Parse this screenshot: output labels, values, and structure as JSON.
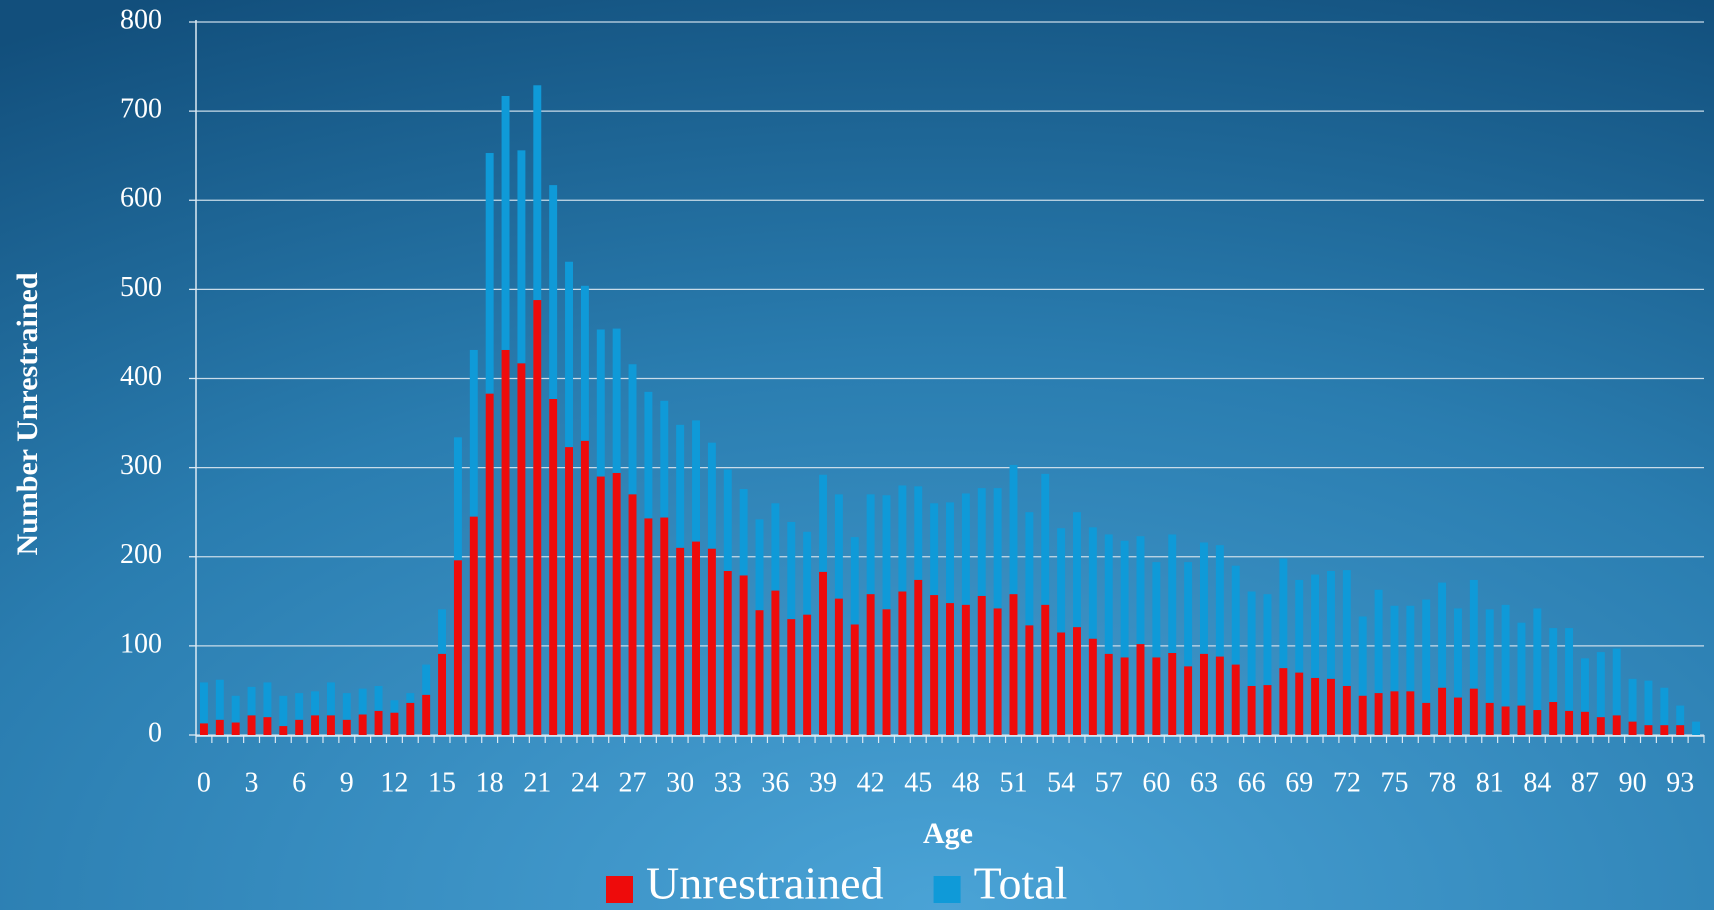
{
  "chart_data": {
    "type": "bar",
    "x_label": "Age",
    "y_label": "Number Unrestrained",
    "categories": [
      "0",
      null,
      null,
      "3",
      null,
      null,
      "6",
      null,
      null,
      "9",
      null,
      null,
      "12",
      null,
      null,
      "15",
      null,
      null,
      "18",
      null,
      null,
      "21",
      null,
      null,
      "24",
      null,
      null,
      "27",
      null,
      null,
      "30",
      null,
      null,
      "33",
      null,
      null,
      "36",
      null,
      null,
      "39",
      null,
      null,
      "42",
      null,
      null,
      "45",
      null,
      null,
      "48",
      null,
      null,
      "51",
      null,
      null,
      "54",
      null,
      null,
      "57",
      null,
      null,
      "60",
      null,
      null,
      "63",
      null,
      null,
      "66",
      null,
      null,
      "69",
      null,
      null,
      "72",
      null,
      null,
      "75",
      null,
      null,
      "78",
      null,
      null,
      "81",
      null,
      null,
      "84",
      null,
      null,
      "87",
      null,
      null,
      "90",
      null,
      null,
      "93",
      null
    ],
    "series": [
      {
        "name": "Total",
        "color": "#0f9ad8",
        "values": [
          59,
          62,
          44,
          54,
          59,
          44,
          47,
          49,
          59,
          47,
          52,
          55,
          39,
          47,
          79,
          141,
          334,
          432,
          653,
          717,
          656,
          729,
          617,
          531,
          504,
          455,
          456,
          416,
          385,
          375,
          348,
          353,
          328,
          298,
          276,
          242,
          260,
          239,
          228,
          292,
          270,
          222,
          270,
          269,
          280,
          279,
          260,
          261,
          271,
          277,
          277,
          303,
          250,
          293,
          232,
          250,
          233,
          225,
          218,
          223,
          194,
          225,
          194,
          216,
          213,
          190,
          161,
          158,
          198,
          174,
          180,
          184,
          185,
          133,
          163,
          145,
          145,
          152,
          171,
          142,
          174,
          141,
          146,
          126,
          142,
          120,
          120,
          86,
          93,
          97,
          63,
          61,
          53,
          33,
          15
        ]
      },
      {
        "name": "Unrestrained",
        "color": "#ee0b0b",
        "values": [
          13,
          17,
          14,
          22,
          20,
          10,
          17,
          22,
          22,
          17,
          23,
          27,
          25,
          36,
          45,
          91,
          196,
          245,
          383,
          432,
          417,
          488,
          377,
          323,
          330,
          290,
          294,
          270,
          243,
          244,
          210,
          217,
          209,
          184,
          179,
          140,
          162,
          130,
          135,
          183,
          153,
          124,
          158,
          141,
          161,
          174,
          157,
          148,
          146,
          156,
          142,
          158,
          123,
          146,
          115,
          121,
          108,
          91,
          87,
          102,
          87,
          92,
          77,
          91,
          88,
          79,
          55,
          56,
          75,
          70,
          64,
          63,
          55,
          44,
          47,
          49,
          49,
          36,
          53,
          42,
          52,
          36,
          32,
          33,
          28,
          37,
          27,
          26,
          20,
          22,
          15,
          11,
          11,
          11,
          0
        ]
      }
    ],
    "legend_order": [
      "Unrestrained",
      "Total"
    ],
    "ylim": [
      0,
      800
    ],
    "yticks": [
      0,
      100,
      200,
      300,
      400,
      500,
      600,
      700,
      800
    ],
    "grid": true
  }
}
